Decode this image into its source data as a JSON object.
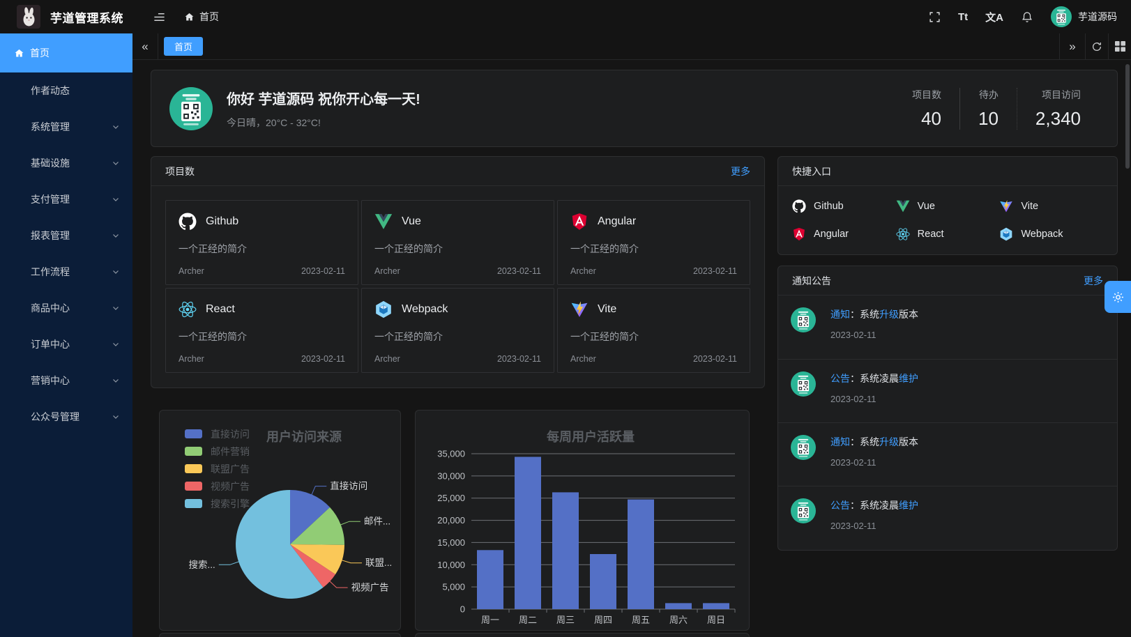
{
  "app": {
    "title": "芋道管理系统",
    "user": "芋道源码"
  },
  "topbar": {
    "breadcrumb_home": "首页",
    "font_size_icon": "Tt",
    "locale_icon": "文A"
  },
  "sidebar": {
    "items": [
      {
        "label": "首页",
        "icon": "home",
        "active": true
      },
      {
        "label": "作者动态"
      },
      {
        "label": "系统管理",
        "chevron": true
      },
      {
        "label": "基础设施",
        "chevron": true
      },
      {
        "label": "支付管理",
        "chevron": true
      },
      {
        "label": "报表管理",
        "chevron": true
      },
      {
        "label": "工作流程",
        "chevron": true
      },
      {
        "label": "商品中心",
        "chevron": true
      },
      {
        "label": "订单中心",
        "chevron": true
      },
      {
        "label": "营销中心",
        "chevron": true
      },
      {
        "label": "公众号管理",
        "chevron": true
      }
    ]
  },
  "tabbar": {
    "active_tab": "首页"
  },
  "welcome": {
    "greeting": "你好 芋道源码 祝你开心每一天!",
    "weather": "今日晴，20°C - 32°C!",
    "stats": [
      {
        "label": "项目数",
        "value": "40"
      },
      {
        "label": "待办",
        "value": "10"
      },
      {
        "label": "项目访问",
        "value": "2,340"
      }
    ]
  },
  "projects": {
    "title": "项目数",
    "more": "更多",
    "items": [
      {
        "name": "Github",
        "icon": "github",
        "desc": "一个正经的简介",
        "author": "Archer",
        "date": "2023-02-11"
      },
      {
        "name": "Vue",
        "icon": "vue",
        "desc": "一个正经的简介",
        "author": "Archer",
        "date": "2023-02-11"
      },
      {
        "name": "Angular",
        "icon": "angular",
        "desc": "一个正经的简介",
        "author": "Archer",
        "date": "2023-02-11"
      },
      {
        "name": "React",
        "icon": "react",
        "desc": "一个正经的简介",
        "author": "Archer",
        "date": "2023-02-11"
      },
      {
        "name": "Webpack",
        "icon": "webpack",
        "desc": "一个正经的简介",
        "author": "Archer",
        "date": "2023-02-11"
      },
      {
        "name": "Vite",
        "icon": "vite",
        "desc": "一个正经的简介",
        "author": "Archer",
        "date": "2023-02-11"
      }
    ]
  },
  "shortcuts": {
    "title": "快捷入口",
    "items": [
      {
        "label": "Github",
        "icon": "github"
      },
      {
        "label": "Vue",
        "icon": "vue"
      },
      {
        "label": "Vite",
        "icon": "vite"
      },
      {
        "label": "Angular",
        "icon": "angular"
      },
      {
        "label": "React",
        "icon": "react"
      },
      {
        "label": "Webpack",
        "icon": "webpack"
      }
    ]
  },
  "notices": {
    "title": "通知公告",
    "more": "更多",
    "items": [
      {
        "segments": [
          {
            "t": "通知",
            "a": true
          },
          {
            "t": "：系统"
          },
          {
            "t": "升级",
            "a": true
          },
          {
            "t": "版本"
          }
        ],
        "date": "2023-02-11"
      },
      {
        "segments": [
          {
            "t": "公告",
            "a": true
          },
          {
            "t": "：系统凌晨"
          },
          {
            "t": "维护",
            "a": true
          }
        ],
        "date": "2023-02-11"
      },
      {
        "segments": [
          {
            "t": "通知",
            "a": true
          },
          {
            "t": "：系统"
          },
          {
            "t": "升级",
            "a": true
          },
          {
            "t": "版本"
          }
        ],
        "date": "2023-02-11"
      },
      {
        "segments": [
          {
            "t": "公告",
            "a": true
          },
          {
            "t": "：系统凌晨"
          },
          {
            "t": "维护",
            "a": true
          }
        ],
        "date": "2023-02-11"
      }
    ]
  },
  "colors": {
    "accent": "#409eff",
    "avatar_green": "#2ab596"
  },
  "chart_data": [
    {
      "type": "pie",
      "title": "用户访问来源",
      "legend_position": "top-left-vertical",
      "series": [
        {
          "name": "直接访问",
          "value": 335,
          "color": "#5470c6",
          "callout": "直接访问"
        },
        {
          "name": "邮件营销",
          "value": 310,
          "color": "#91cc75",
          "callout": "邮件..."
        },
        {
          "name": "联盟广告",
          "value": 234,
          "color": "#fac858",
          "callout": "联盟..."
        },
        {
          "name": "视频广告",
          "value": 135,
          "color": "#ee6666",
          "callout": "视频广告"
        },
        {
          "name": "搜索引擎",
          "value": 1548,
          "color": "#73c0de",
          "callout": "搜索..."
        }
      ]
    },
    {
      "type": "bar",
      "title": "每周用户活跃量",
      "categories": [
        "周一",
        "周二",
        "周三",
        "周四",
        "周五",
        "周六",
        "周日"
      ],
      "values": [
        13300,
        34300,
        26300,
        12400,
        24700,
        1350,
        1350
      ],
      "ylim": [
        0,
        35000
      ],
      "ytick_step": 5000,
      "bar_color": "#5470c6",
      "grid": true,
      "legend_position": "none"
    }
  ]
}
